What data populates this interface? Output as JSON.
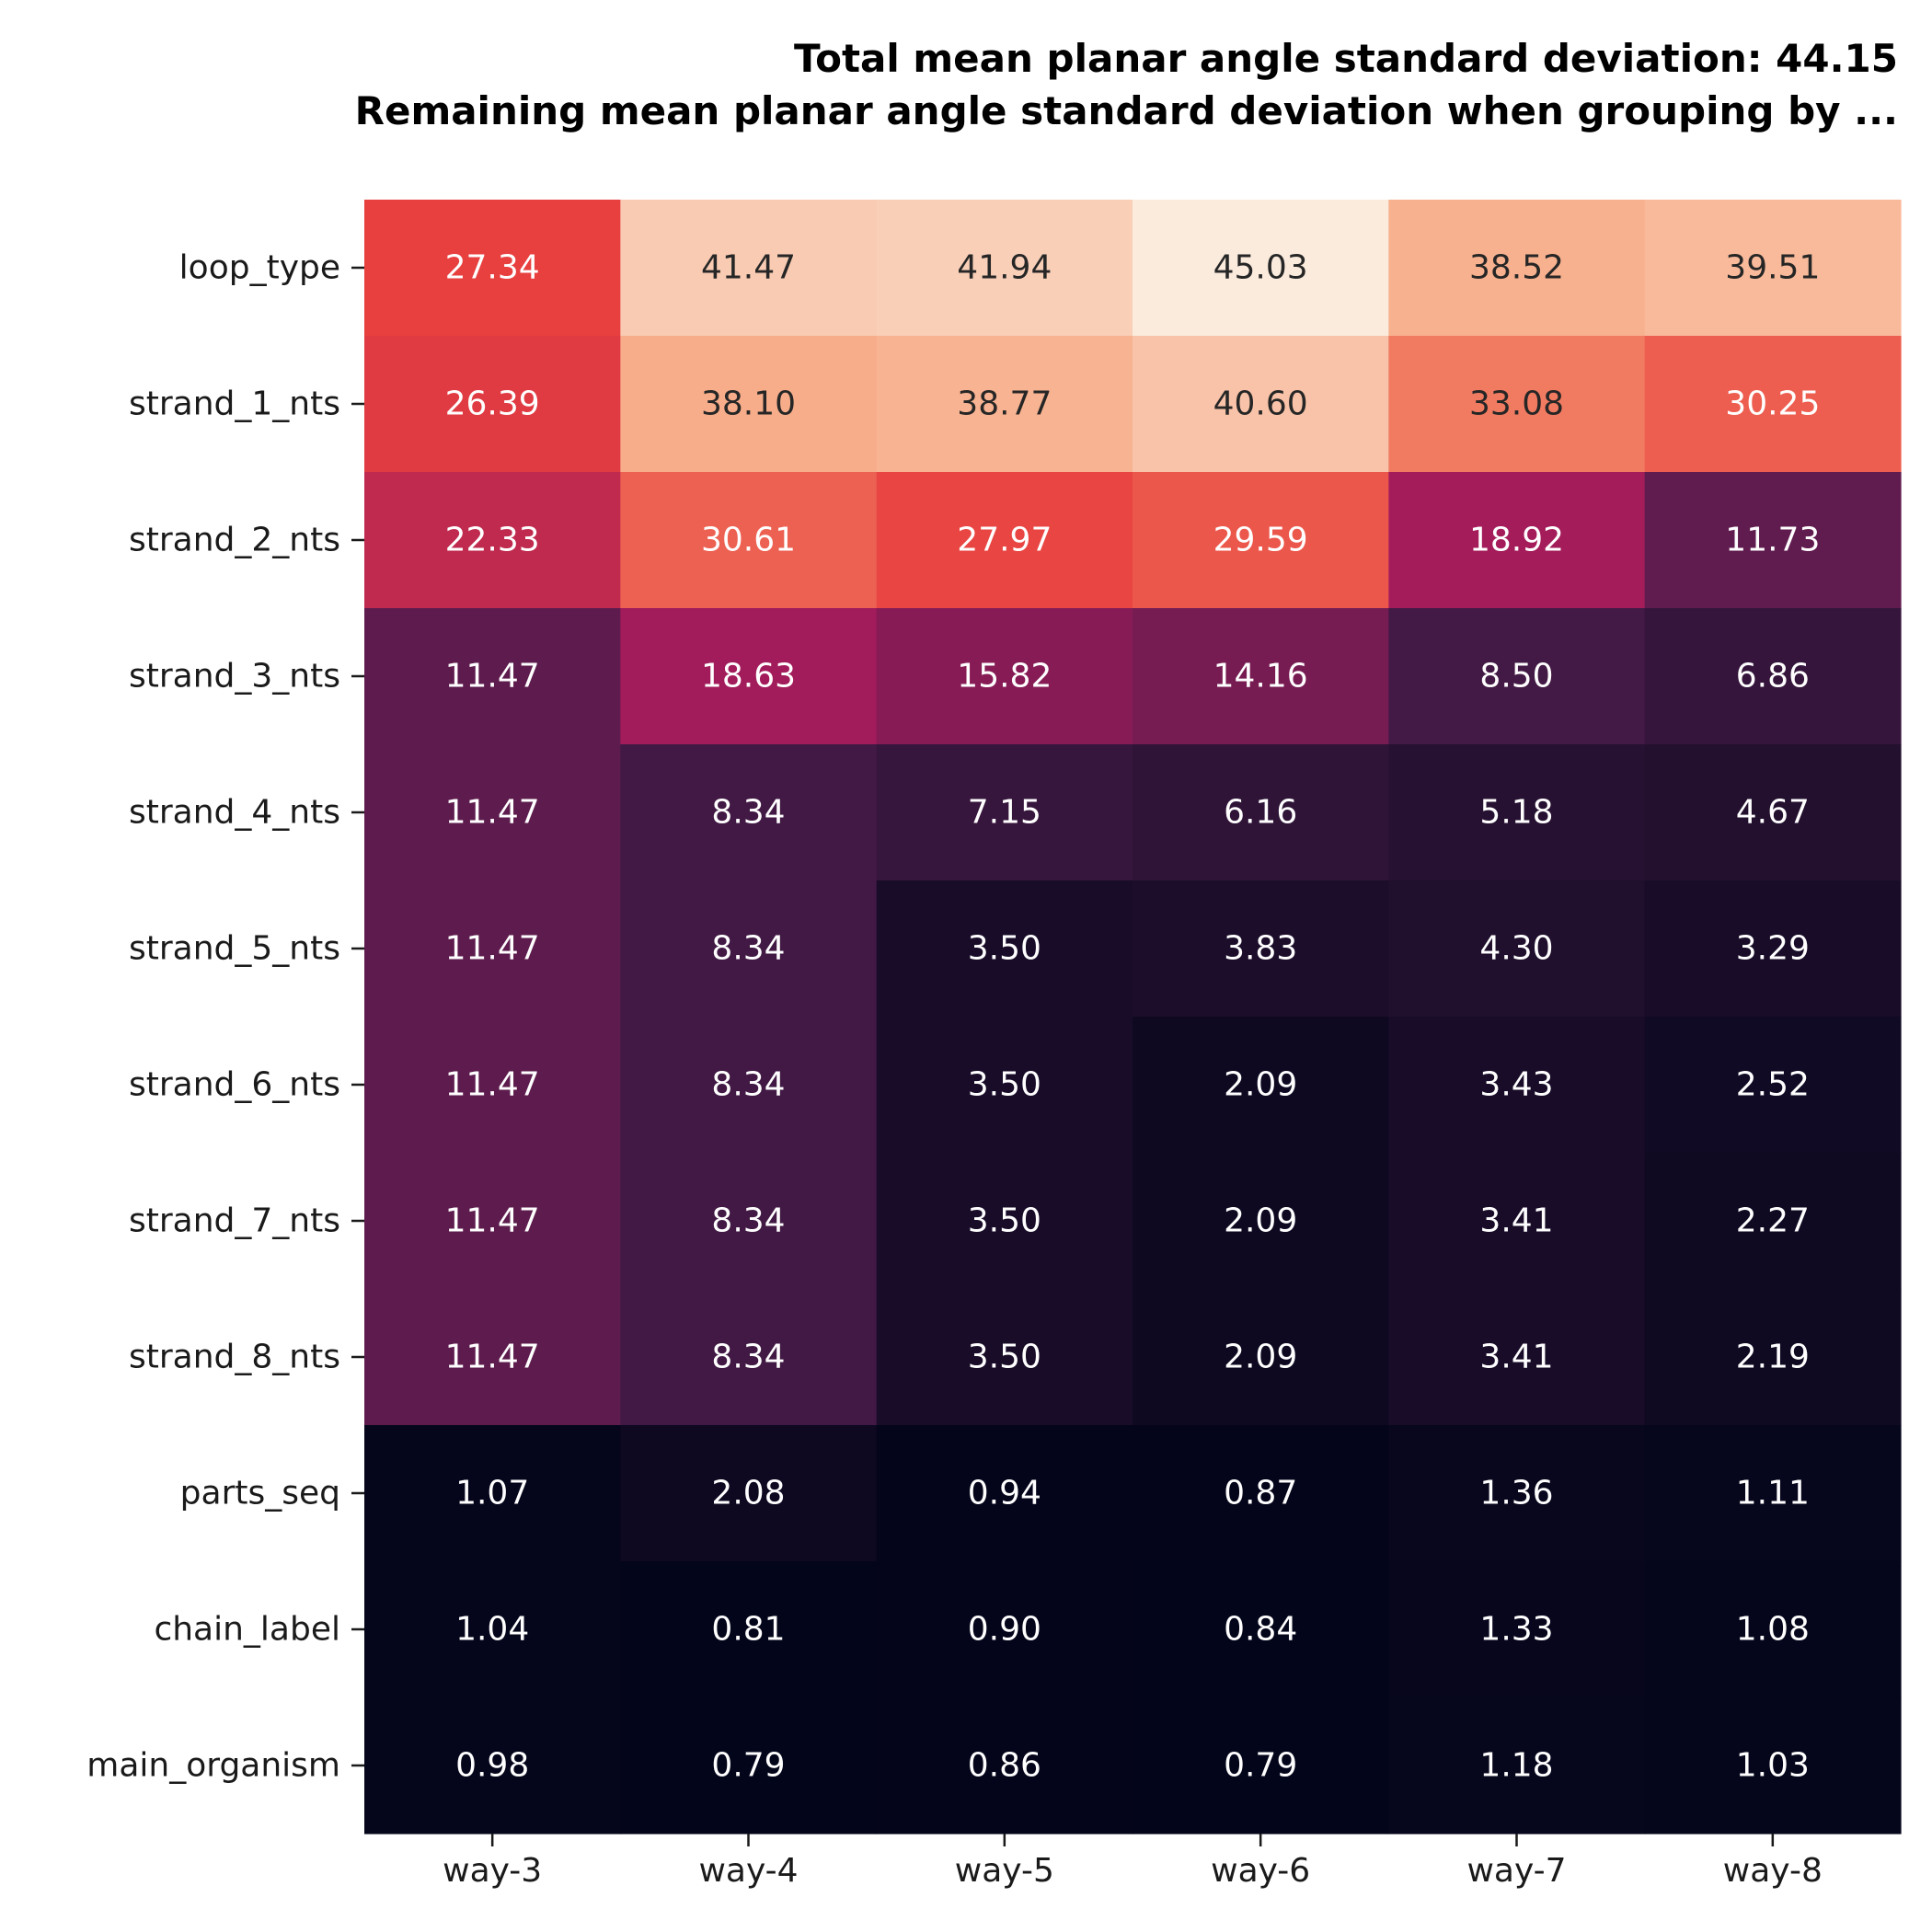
{
  "chart_data": {
    "type": "heatmap",
    "title": "Total mean planar angle standard deviation: 44.15",
    "subtitle": "Remaining mean planar angle standard deviation when grouping by ...",
    "xlabel": "",
    "ylabel": "",
    "columns": [
      "way-3",
      "way-4",
      "way-5",
      "way-6",
      "way-7",
      "way-8"
    ],
    "rows": [
      "loop_type",
      "strand_1_nts",
      "strand_2_nts",
      "strand_3_nts",
      "strand_4_nts",
      "strand_5_nts",
      "strand_6_nts",
      "strand_7_nts",
      "strand_8_nts",
      "parts_seq",
      "chain_label",
      "main_organism"
    ],
    "values": [
      [
        27.34,
        41.47,
        41.94,
        45.03,
        38.52,
        39.51
      ],
      [
        26.39,
        38.1,
        38.77,
        40.6,
        33.08,
        30.25
      ],
      [
        22.33,
        30.61,
        27.97,
        29.59,
        18.92,
        11.73
      ],
      [
        11.47,
        18.63,
        15.82,
        14.16,
        8.5,
        6.86
      ],
      [
        11.47,
        8.34,
        7.15,
        6.16,
        5.18,
        4.67
      ],
      [
        11.47,
        8.34,
        3.5,
        3.83,
        4.3,
        3.29
      ],
      [
        11.47,
        8.34,
        3.5,
        2.09,
        3.43,
        2.52
      ],
      [
        11.47,
        8.34,
        3.5,
        2.09,
        3.41,
        2.27
      ],
      [
        11.47,
        8.34,
        3.5,
        2.09,
        3.41,
        2.19
      ],
      [
        1.07,
        2.08,
        0.94,
        0.87,
        1.36,
        1.11
      ],
      [
        1.04,
        0.81,
        0.9,
        0.84,
        1.33,
        1.08
      ],
      [
        0.98,
        0.79,
        0.86,
        0.79,
        1.18,
        1.03
      ]
    ],
    "labels": [
      [
        "27.34",
        "41.47",
        "41.94",
        "45.03",
        "38.52",
        "39.51"
      ],
      [
        "26.39",
        "38.10",
        "38.77",
        "40.60",
        "33.08",
        "30.25"
      ],
      [
        "22.33",
        "30.61",
        "27.97",
        "29.59",
        "18.92",
        "11.73"
      ],
      [
        "11.47",
        "18.63",
        "15.82",
        "14.16",
        "8.50",
        "6.86"
      ],
      [
        "11.47",
        "8.34",
        "7.15",
        "6.16",
        "5.18",
        "4.67"
      ],
      [
        "11.47",
        "8.34",
        "3.50",
        "3.83",
        "4.30",
        "3.29"
      ],
      [
        "11.47",
        "8.34",
        "3.50",
        "2.09",
        "3.43",
        "2.52"
      ],
      [
        "11.47",
        "8.34",
        "3.50",
        "2.09",
        "3.41",
        "2.27"
      ],
      [
        "11.47",
        "8.34",
        "3.50",
        "2.09",
        "3.41",
        "2.19"
      ],
      [
        "1.07",
        "2.08",
        "0.94",
        "0.87",
        "1.36",
        "1.11"
      ],
      [
        "1.04",
        "0.81",
        "0.90",
        "0.84",
        "1.33",
        "1.08"
      ],
      [
        "0.98",
        "0.79",
        "0.86",
        "0.79",
        "1.18",
        "1.03"
      ]
    ],
    "colormap": "rocket",
    "colormap_stops": [
      "#03051a",
      "#4c1d4b",
      "#a11a5b",
      "#e83f3f",
      "#f69c73",
      "#faebdd"
    ],
    "vmin": 0.79,
    "vmax": 45.03,
    "grid": false,
    "legend": "none"
  }
}
